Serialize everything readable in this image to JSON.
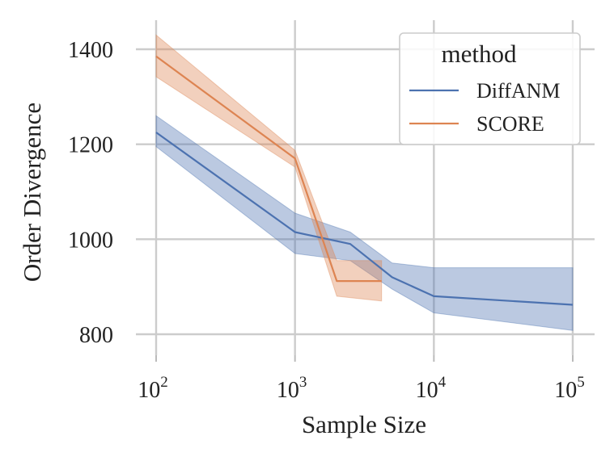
{
  "chart_data": {
    "type": "line",
    "title": "",
    "xlabel": "Sample Size",
    "ylabel": "Order Divergence",
    "x_scale": "log10",
    "xlim": [
      100,
      100000
    ],
    "ylim": [
      780,
      1460
    ],
    "x_ticks": [
      {
        "value": 100,
        "base": "10",
        "exp": "2"
      },
      {
        "value": 1000,
        "base": "10",
        "exp": "3"
      },
      {
        "value": 10000,
        "base": "10",
        "exp": "4"
      },
      {
        "value": 100000,
        "base": "10",
        "exp": "5"
      }
    ],
    "y_ticks": [
      {
        "value": 800,
        "label": "800"
      },
      {
        "value": 1000,
        "label": "1000"
      },
      {
        "value": 1200,
        "label": "1200"
      },
      {
        "value": 1400,
        "label": "1400"
      }
    ],
    "grid": true,
    "legend": {
      "title": "method",
      "position": "top-right"
    },
    "series": [
      {
        "name": "DiffANM",
        "color": "#4c72b0",
        "band_color": "#4c72b0",
        "x": [
          100,
          1000,
          2500,
          5000,
          10000,
          100000
        ],
        "y": [
          1225,
          1015,
          990,
          920,
          880,
          862
        ],
        "lower": [
          1195,
          970,
          955,
          895,
          845,
          808
        ],
        "upper": [
          1260,
          1055,
          1015,
          950,
          940,
          940
        ]
      },
      {
        "name": "SCORE",
        "color": "#dd8452",
        "band_color": "#dd8452",
        "x": [
          100,
          1000,
          2000,
          4200
        ],
        "y": [
          1385,
          1170,
          912,
          912
        ],
        "lower": [
          1342,
          1152,
          880,
          870
        ],
        "upper": [
          1430,
          1187,
          955,
          955
        ]
      }
    ]
  }
}
